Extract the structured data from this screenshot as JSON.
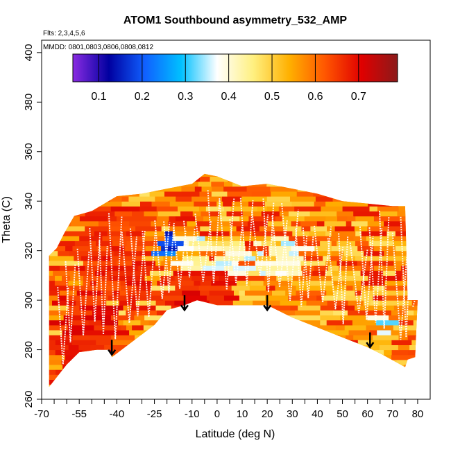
{
  "chart_data": {
    "type": "heatmap",
    "title": "ATOM1 Southbound asymmetry_532_AMP",
    "annotations": {
      "flights": "Flts: 2,3,4,5,6",
      "dates": "MMDD: 0801,0803,0806,0808,0812"
    },
    "xlabel": "Latitude (deg N)",
    "ylabel": "Theta (C)",
    "xlim": [
      -70,
      85
    ],
    "ylim": [
      260,
      405
    ],
    "x_tick_values": [
      -70,
      -65,
      -60,
      -55,
      -50,
      -45,
      -40,
      -35,
      -30,
      -25,
      -20,
      -15,
      -10,
      -5,
      0,
      5,
      10,
      15,
      20,
      25,
      30,
      35,
      40,
      45,
      50,
      55,
      60,
      65,
      70,
      75,
      80
    ],
    "x_tick_labels": [
      "-70",
      "",
      "",
      "-55",
      "",
      "",
      "-40",
      "",
      "",
      "-25",
      "",
      "",
      "-10",
      "",
      "0",
      "",
      "10",
      "",
      "20",
      "",
      "30",
      "",
      "40",
      "",
      "50",
      "",
      "60",
      "",
      "70",
      "",
      "80"
    ],
    "y_ticks": [
      260,
      280,
      300,
      320,
      340,
      360,
      380,
      400
    ],
    "y_tick_labels": [
      "260",
      "280",
      "300",
      "320",
      "340",
      "360",
      "380",
      "400"
    ],
    "colorbar": {
      "range": [
        0.04,
        0.79
      ],
      "ticks": [
        0.1,
        0.2,
        0.3,
        0.4,
        0.5,
        0.6,
        0.7
      ],
      "tick_labels": [
        "0.1",
        "0.2",
        "0.3",
        "0.4",
        "0.5",
        "0.6",
        "0.7"
      ],
      "colors": [
        "#8a2be2",
        "#0000a0",
        "#1060ff",
        "#00c0ff",
        "#ffffff",
        "#fff080",
        "#ffb000",
        "#ff5500",
        "#e00000",
        "#8b1a1a"
      ]
    },
    "arrows_lat_theta": [
      [
        -42,
        284
      ],
      [
        -13,
        302
      ],
      [
        20,
        302
      ],
      [
        61,
        287
      ]
    ],
    "lower_boundary_lat_theta": [
      [
        -67,
        265
      ],
      [
        -60,
        274
      ],
      [
        -55,
        279
      ],
      [
        -48,
        280
      ],
      [
        -43,
        280
      ],
      [
        -42,
        277
      ],
      [
        -25,
        290
      ],
      [
        -20,
        296
      ],
      [
        -13,
        298
      ],
      [
        -8,
        300
      ],
      [
        0,
        298
      ],
      [
        10,
        298
      ],
      [
        20,
        298
      ],
      [
        30,
        293
      ],
      [
        40,
        289
      ],
      [
        50,
        285
      ],
      [
        60,
        281
      ],
      [
        66,
        278
      ],
      [
        75,
        273
      ],
      [
        76,
        276
      ]
    ],
    "upper_boundary_lat_theta": [
      [
        -67,
        318
      ],
      [
        -64,
        321
      ],
      [
        -61,
        327
      ],
      [
        -57,
        334
      ],
      [
        -50,
        336
      ],
      [
        -40,
        342
      ],
      [
        -30,
        343
      ],
      [
        -20,
        345
      ],
      [
        -10,
        347
      ],
      [
        -5,
        351
      ],
      [
        0,
        350
      ],
      [
        10,
        346
      ],
      [
        20,
        347
      ],
      [
        30,
        345
      ],
      [
        40,
        343
      ],
      [
        50,
        340
      ],
      [
        60,
        339
      ],
      [
        70,
        338
      ],
      [
        75,
        338
      ],
      [
        76,
        300
      ],
      [
        80,
        300
      ],
      [
        79,
        277
      ]
    ],
    "high_asymmetry_regions": [
      {
        "lat": [
          -68,
          -45
        ],
        "theta": [
          265,
          300
        ],
        "level": 0.68
      },
      {
        "lat": [
          -25,
          5
        ],
        "theta": [
          298,
          310
        ],
        "level": 0.68
      },
      {
        "lat": [
          -58,
          -30
        ],
        "theta": [
          300,
          336
        ],
        "level": 0.66
      }
    ],
    "low_asymmetry_regions": [
      {
        "lat": [
          -28,
          -20
        ],
        "theta": [
          318,
          330
        ],
        "level": 0.2
      },
      {
        "lat": [
          -20,
          30
        ],
        "theta": [
          310,
          325
        ],
        "level": 0.4
      },
      {
        "lat": [
          57,
          67
        ],
        "theta": [
          285,
          292
        ],
        "level": 0.35
      }
    ],
    "background_level": 0.58,
    "grid": false
  }
}
